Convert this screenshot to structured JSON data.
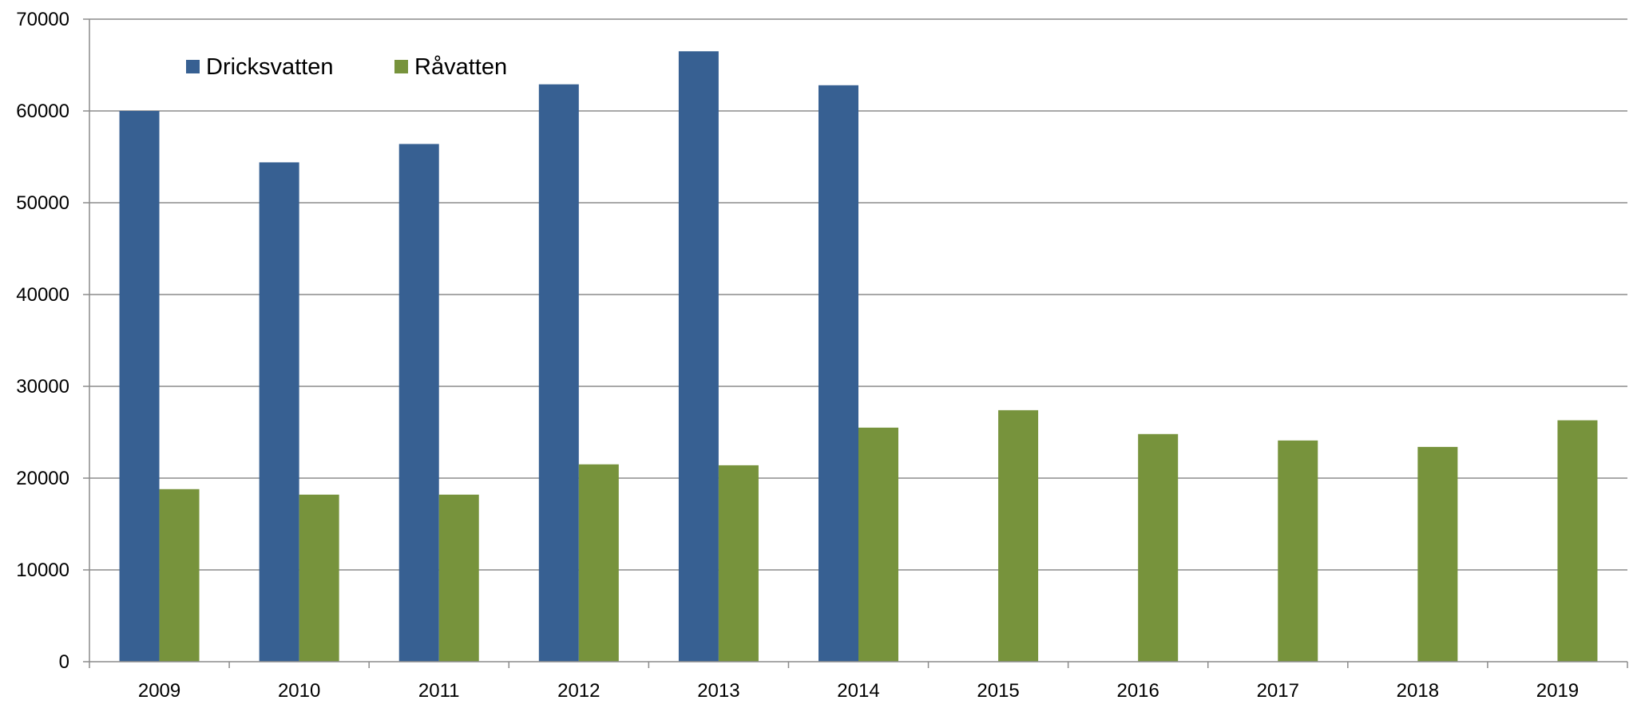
{
  "chart_data": {
    "type": "bar",
    "categories": [
      "2009",
      "2010",
      "2011",
      "2012",
      "2013",
      "2014",
      "2015",
      "2016",
      "2017",
      "2018",
      "2019"
    ],
    "series": [
      {
        "name": "Dricksvatten",
        "color": "#376092",
        "values": [
          60000,
          54400,
          56400,
          62900,
          66500,
          62800,
          null,
          null,
          null,
          null,
          null
        ]
      },
      {
        "name": "Råvatten",
        "color": "#77933C",
        "values": [
          18800,
          18200,
          18200,
          21500,
          21400,
          25500,
          27400,
          24800,
          24100,
          23400,
          26300
        ]
      }
    ],
    "yticks": [
      "0",
      "10000",
      "20000",
      "30000",
      "40000",
      "50000",
      "60000",
      "70000"
    ],
    "ylim": [
      0,
      70000
    ],
    "grid": true,
    "legend_position": "top-left"
  }
}
